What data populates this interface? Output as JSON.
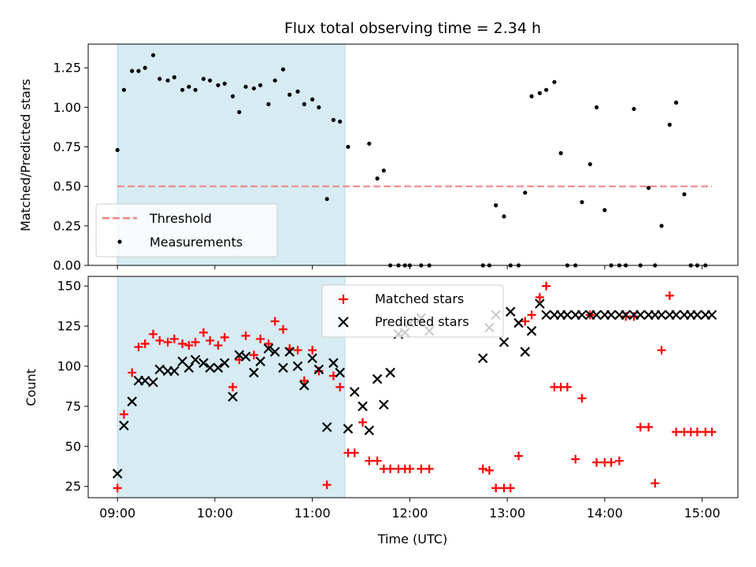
{
  "chart_data": [
    {
      "type": "scatter",
      "title": "Flux total observing time = 2.34 h",
      "xlabel": "",
      "ylabel": "Matched/Predicted stars",
      "xlim": [
        "08:42",
        "15:22"
      ],
      "ylim": [
        0,
        1.4
      ],
      "xticks": [
        "09:00",
        "10:00",
        "11:00",
        "12:00",
        "13:00",
        "14:00",
        "15:00"
      ],
      "yticks": [
        "0.00",
        "0.25",
        "0.50",
        "0.75",
        "1.00",
        "1.25"
      ],
      "legend_placement": "lower-left",
      "shaded_interval": [
        "09:00",
        "11:20"
      ],
      "threshold": {
        "name": "Threshold",
        "y": 0.5,
        "x_start": "09:00",
        "x_end": "15:06",
        "color": "#f08080"
      },
      "series": [
        {
          "name": "Measurements",
          "color": "#000000",
          "marker": "dot",
          "x": [
            "09:00",
            "09:04",
            "09:09",
            "09:13",
            "09:17",
            "09:22",
            "09:26",
            "09:31",
            "09:35",
            "09:40",
            "09:44",
            "09:48",
            "09:53",
            "09:57",
            "10:02",
            "10:06",
            "10:11",
            "10:15",
            "10:19",
            "10:24",
            "10:28",
            "10:33",
            "10:37",
            "10:42",
            "10:46",
            "10:51",
            "10:55",
            "11:00",
            "11:04",
            "11:09",
            "11:13",
            "11:17",
            "11:22",
            "11:35",
            "11:40",
            "11:44",
            "11:48",
            "11:53",
            "11:57",
            "12:00",
            "12:07",
            "12:12",
            "12:45",
            "12:49",
            "12:53",
            "12:58",
            "13:02",
            "13:07",
            "13:11",
            "13:15",
            "13:20",
            "13:24",
            "13:29",
            "13:33",
            "13:37",
            "13:42",
            "13:46",
            "13:51",
            "13:55",
            "14:00",
            "14:04",
            "14:09",
            "14:13",
            "14:18",
            "14:22",
            "14:27",
            "14:31",
            "14:35",
            "14:40",
            "14:44",
            "14:49",
            "14:53",
            "14:57",
            "15:02"
          ],
          "y": [
            0.73,
            1.11,
            1.23,
            1.23,
            1.25,
            1.33,
            1.18,
            1.17,
            1.19,
            1.11,
            1.13,
            1.11,
            1.18,
            1.17,
            1.14,
            1.15,
            1.07,
            0.97,
            1.13,
            1.12,
            1.14,
            1.02,
            1.17,
            1.24,
            1.08,
            1.1,
            1.02,
            1.05,
            1.0,
            0.42,
            0.92,
            0.91,
            0.75,
            0.77,
            0.55,
            0.6,
            0.0,
            0.0,
            0.0,
            0.0,
            0.0,
            0.0,
            0.0,
            0.0,
            0.38,
            0.31,
            0.0,
            0.0,
            0.46,
            1.07,
            1.09,
            1.11,
            1.16,
            0.71,
            0.0,
            0.0,
            0.4,
            0.64,
            1.0,
            0.35,
            0.0,
            0.0,
            0.0,
            0.99,
            0.0,
            0.49,
            0.0,
            0.25,
            0.89,
            1.03,
            0.45,
            0.0,
            0.0,
            0.0
          ]
        }
      ]
    },
    {
      "type": "scatter",
      "title": "",
      "xlabel": "Time (UTC)",
      "ylabel": "Count",
      "xlim": [
        "08:42",
        "15:22"
      ],
      "ylim": [
        18,
        156
      ],
      "xticks": [
        "09:00",
        "10:00",
        "11:00",
        "12:00",
        "13:00",
        "14:00",
        "15:00"
      ],
      "yticks": [
        "25",
        "50",
        "75",
        "100",
        "125",
        "150"
      ],
      "legend_placement": "upper-center",
      "shaded_interval": [
        "09:00",
        "11:20"
      ],
      "series": [
        {
          "name": "Matched stars",
          "color": "#ff0000",
          "marker": "plus",
          "x": [
            "09:00",
            "09:04",
            "09:09",
            "09:13",
            "09:17",
            "09:22",
            "09:26",
            "09:31",
            "09:35",
            "09:40",
            "09:44",
            "09:48",
            "09:53",
            "09:57",
            "10:02",
            "10:06",
            "10:11",
            "10:15",
            "10:19",
            "10:24",
            "10:28",
            "10:33",
            "10:37",
            "10:42",
            "10:46",
            "10:51",
            "10:55",
            "11:00",
            "11:04",
            "11:09",
            "11:13",
            "11:17",
            "11:22",
            "11:26",
            "11:31",
            "11:35",
            "11:40",
            "11:44",
            "11:48",
            "11:53",
            "11:57",
            "12:00",
            "12:07",
            "12:12",
            "12:45",
            "12:49",
            "12:53",
            "12:58",
            "13:02",
            "13:07",
            "13:11",
            "13:15",
            "13:20",
            "13:24",
            "13:29",
            "13:33",
            "13:37",
            "13:42",
            "13:46",
            "13:51",
            "13:55",
            "14:00",
            "14:04",
            "14:09",
            "14:13",
            "14:18",
            "14:22",
            "14:27",
            "14:31",
            "14:35",
            "14:40",
            "14:44",
            "14:49",
            "14:53",
            "14:57",
            "15:02",
            "15:06"
          ],
          "y": [
            24,
            70,
            96,
            112,
            114,
            120,
            116,
            115,
            117,
            114,
            113,
            115,
            121,
            116,
            113,
            118,
            87,
            104,
            119,
            107,
            117,
            114,
            128,
            123,
            111,
            110,
            91,
            110,
            97,
            26,
            94,
            87,
            46,
            46,
            65,
            41,
            41,
            36,
            36,
            36,
            36,
            36,
            36,
            36,
            36,
            35,
            24,
            24,
            24,
            44,
            128,
            132,
            143,
            150,
            87,
            87,
            87,
            42,
            80,
            132,
            40,
            40,
            40,
            41,
            131,
            131,
            62,
            62,
            27,
            110,
            144,
            59,
            59,
            59,
            59,
            59,
            59
          ]
        },
        {
          "name": "Predicted stars",
          "color": "#000000",
          "marker": "x",
          "x": [
            "09:00",
            "09:04",
            "09:09",
            "09:13",
            "09:17",
            "09:22",
            "09:26",
            "09:31",
            "09:35",
            "09:40",
            "09:44",
            "09:48",
            "09:53",
            "09:57",
            "10:02",
            "10:06",
            "10:11",
            "10:15",
            "10:19",
            "10:24",
            "10:28",
            "10:33",
            "10:37",
            "10:42",
            "10:46",
            "10:51",
            "10:55",
            "11:00",
            "11:04",
            "11:09",
            "11:13",
            "11:17",
            "11:22",
            "11:26",
            "11:31",
            "11:35",
            "11:40",
            "11:44",
            "11:48",
            "11:53",
            "11:57",
            "12:00",
            "12:07",
            "12:12",
            "12:45",
            "12:49",
            "12:53",
            "12:58",
            "13:02",
            "13:07",
            "13:11",
            "13:15",
            "13:20",
            "13:24",
            "13:29",
            "13:33",
            "13:37",
            "13:42",
            "13:46",
            "13:51",
            "13:55",
            "14:00",
            "14:04",
            "14:09",
            "14:13",
            "14:18",
            "14:22",
            "14:27",
            "14:31",
            "14:35",
            "14:40",
            "14:44",
            "14:49",
            "14:53",
            "14:57",
            "15:02",
            "15:06"
          ],
          "y": [
            33,
            63,
            78,
            91,
            91,
            90,
            98,
            97,
            97,
            103,
            99,
            104,
            102,
            99,
            99,
            102,
            81,
            107,
            106,
            96,
            103,
            111,
            109,
            99,
            109,
            100,
            88,
            105,
            98,
            62,
            102,
            96,
            61,
            84,
            75,
            60,
            92,
            76,
            96,
            120,
            121,
            127,
            130,
            122,
            105,
            124,
            132,
            115,
            134,
            127,
            109,
            122,
            139,
            132,
            132,
            132,
            132,
            132,
            132,
            132,
            132,
            132,
            132,
            132,
            132,
            132,
            132,
            132,
            132,
            132,
            132,
            132,
            132,
            132,
            132,
            132,
            132
          ]
        }
      ]
    }
  ]
}
